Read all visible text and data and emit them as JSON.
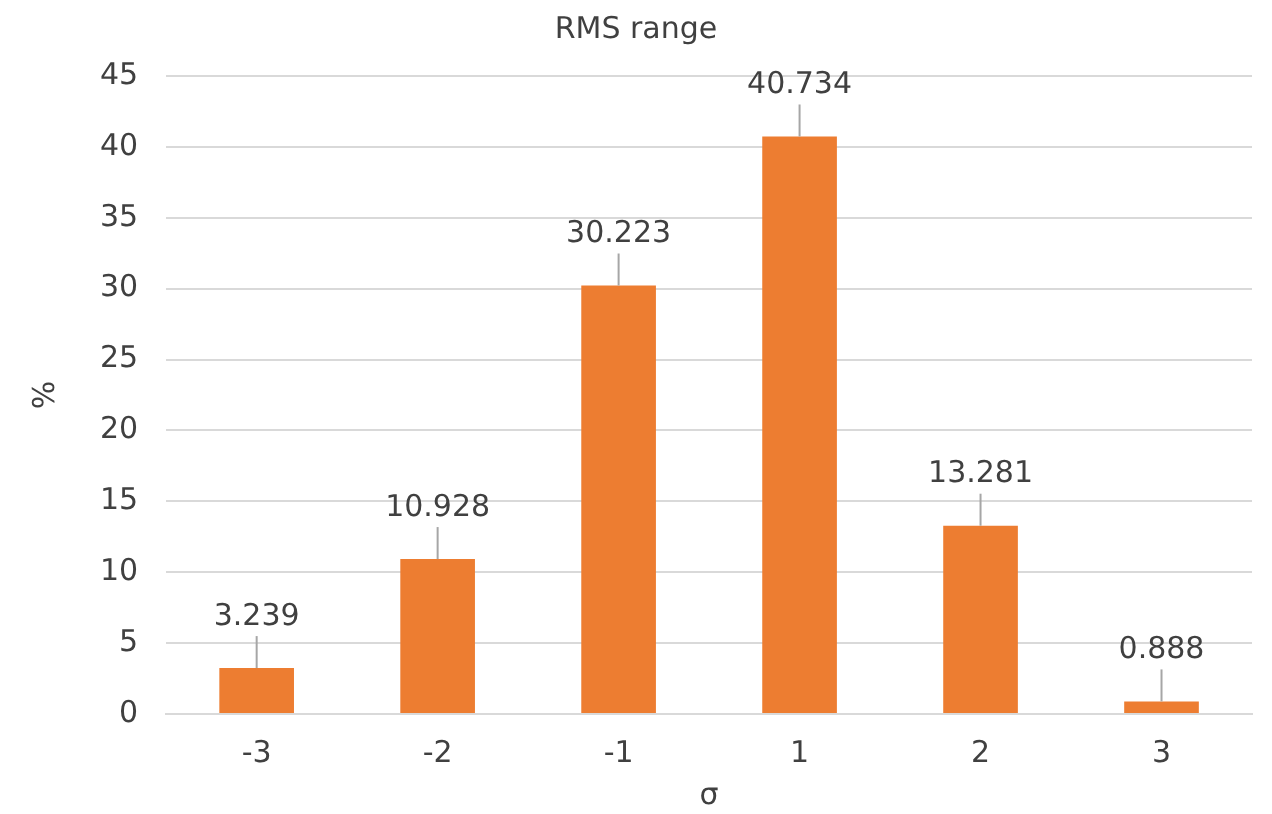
{
  "chart_data": {
    "type": "bar",
    "title": "RMS range",
    "xlabel": "σ",
    "ylabel": "%",
    "categories": [
      "-3",
      "-2",
      "-1",
      "1",
      "2",
      "3"
    ],
    "values": [
      3.239,
      10.928,
      30.223,
      40.734,
      13.281,
      0.888
    ],
    "color": "#ed7d31",
    "ylim": [
      0,
      45
    ],
    "yticks": [
      0,
      5,
      10,
      15,
      20,
      25,
      30,
      35,
      40,
      45
    ],
    "grid": "y",
    "data_labels": true,
    "legend": false
  }
}
